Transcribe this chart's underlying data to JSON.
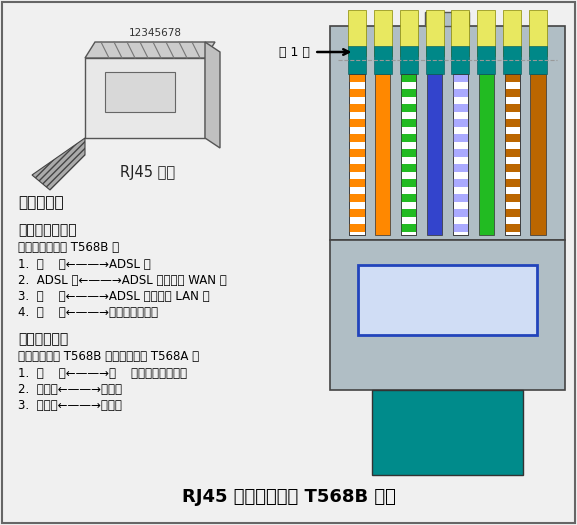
{
  "bg_color": "#f0f0f0",
  "title": "RJ45 型网线插头的 T568B 线序",
  "title_fontsize": 13,
  "rj45_label": "RJ45 插头",
  "pin_label": "第 1 脚",
  "pin_numbers": "12345678",
  "connector_body_color": "#b0bec5",
  "connector_body_color2": "#9eaab2",
  "teal_color": "#009999",
  "blue_rect_border": "#2244bb",
  "blue_rect_fill": "#d0ddf5",
  "scope_title": "适用范围：",
  "section1_title": "一、直连线互连",
  "section1_sub": "网线的两端均按 T568B 接",
  "section1_items": [
    "1.  电    脑←——→ADSL 猫",
    "2.  ADSL 猫←——→ADSL 路由器的 WAN 口",
    "3.  电    脑←——→ADSL 路由器的 LAN 口",
    "4.  电    脑←——→集线器或交换机"
  ],
  "section2_title": "二、交叉互连",
  "section2_sub": "网线的一端按 T568B 接，另一端按 T568A 接",
  "section2_items": [
    "1.  电    脑←——→电    脑，即对等网连接",
    "2.  集线器←——→集线器",
    "3.  交换机←——→交换机"
  ],
  "wire_colors": [
    "#ff8800",
    "#ff8800",
    "#22bb22",
    "#3344cc",
    "#aaaaff",
    "#22bb22",
    "#bb6600",
    "#bb6600"
  ],
  "wire_is_stripe": [
    true,
    false,
    true,
    false,
    true,
    false,
    true,
    false
  ],
  "wire_stripe_on": [
    "#ffffff",
    null,
    "#ffffff",
    null,
    "#3344cc",
    null,
    "#ffffff",
    null
  ]
}
